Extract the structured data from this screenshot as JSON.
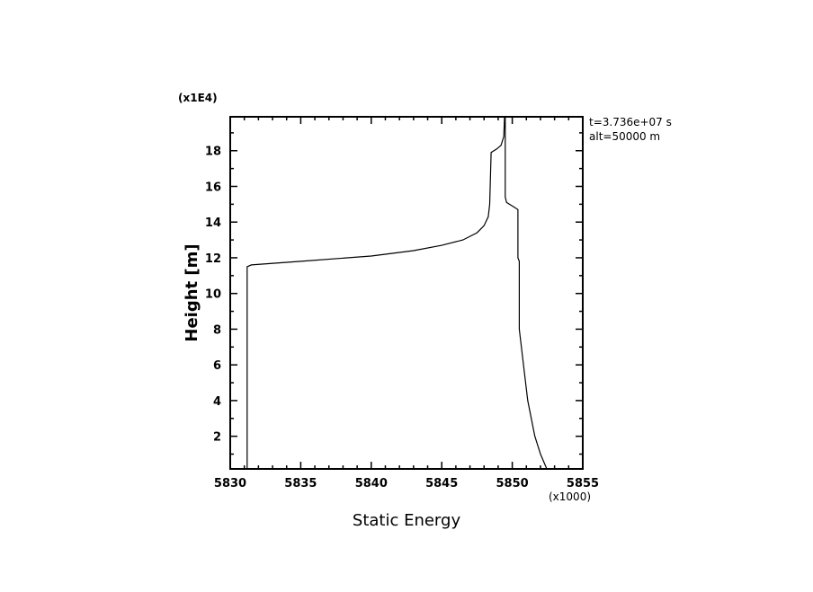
{
  "chart_data": {
    "type": "line",
    "title": "",
    "xlabel": "Static Energy",
    "ylabel": "Height [m]",
    "x_multiplier_label": "(x1000)",
    "y_multiplier_label": "(x1E4)",
    "xlim": [
      5830,
      5855
    ],
    "ylim": [
      0.17,
      19.9
    ],
    "xticks": [
      5830,
      5835,
      5840,
      5845,
      5850,
      5855
    ],
    "yticks": [
      2,
      4,
      6,
      8,
      10,
      12,
      14,
      16,
      18
    ],
    "grid": false,
    "annotations": [
      "t=3.736e+07 s",
      "alt=50000 m"
    ],
    "line_color": "#000000",
    "series": [
      {
        "x": [
          5831.2,
          5831.2,
          5831.5,
          5835,
          5840,
          5843,
          5845,
          5846.5,
          5847.5,
          5848,
          5848.3,
          5848.4,
          5848.5,
          5848.9,
          5849.2,
          5849.4,
          5849.45,
          5849.5,
          5849.5,
          5849.6,
          5850,
          5850.4,
          5850.4,
          5850.5,
          5850.5,
          5850.8,
          5851.1,
          5851.6,
          5852.0,
          5852.45
        ],
        "y": [
          0.17,
          11.5,
          11.6,
          11.8,
          12.1,
          12.4,
          12.7,
          13.0,
          13.4,
          13.8,
          14.3,
          15.0,
          17.9,
          18.1,
          18.3,
          18.8,
          19.9,
          19.9,
          15.4,
          15.1,
          14.9,
          14.7,
          12.0,
          11.8,
          8.0,
          6.0,
          4.0,
          2.0,
          1.0,
          0.17
        ]
      }
    ]
  }
}
